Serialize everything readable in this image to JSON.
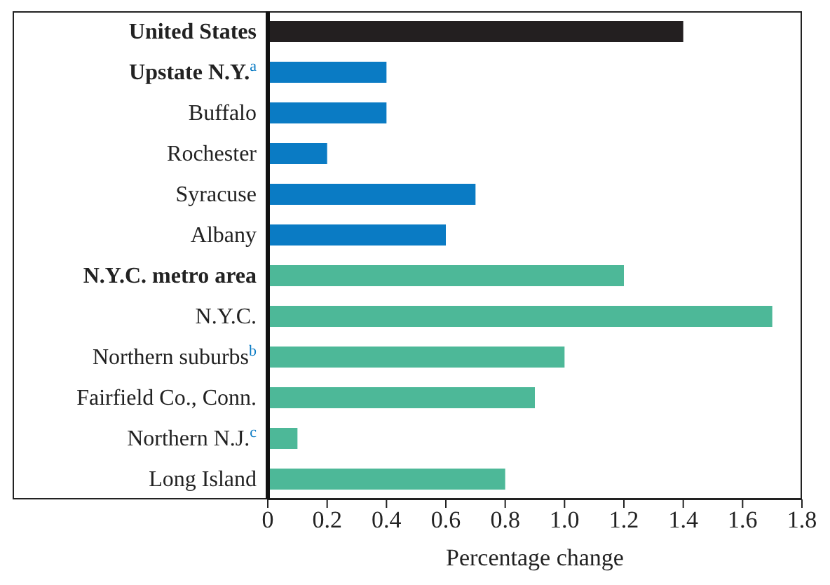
{
  "chart_data": {
    "type": "bar",
    "orientation": "horizontal",
    "xlabel": "Percentage change",
    "categories": [
      "United States",
      "Upstate N.Y.$^{a}$",
      "Buffalo",
      "Rochester",
      "Syracuse",
      "Albany",
      "N.Y.C. metro area",
      "N.Y.C.",
      "Northern suburbs$^{b}$",
      "Fairfield Co., Conn.",
      "Northern N.J.$^{c}$",
      "Long Island"
    ],
    "values": [
      1.4,
      0.4,
      0.4,
      0.2,
      0.7,
      0.6,
      1.2,
      1.7,
      1.0,
      0.9,
      0.1,
      0.8
    ],
    "colors": [
      "#231f20",
      "#0a7bc4",
      "#0a7bc4",
      "#0a7bc4",
      "#0a7bc4",
      "#0a7bc4",
      "#4db898",
      "#4db898",
      "#4db898",
      "#4db898",
      "#4db898",
      "#4db898"
    ],
    "xlim": [
      0,
      1.8
    ],
    "xticks": [
      0,
      0.2,
      0.4,
      0.6,
      0.8,
      {
        "value": 1,
        "label": "1.0"
      },
      1.2,
      1.4,
      1.6,
      1.8
    ],
    "grid": false,
    "legend": false
  }
}
